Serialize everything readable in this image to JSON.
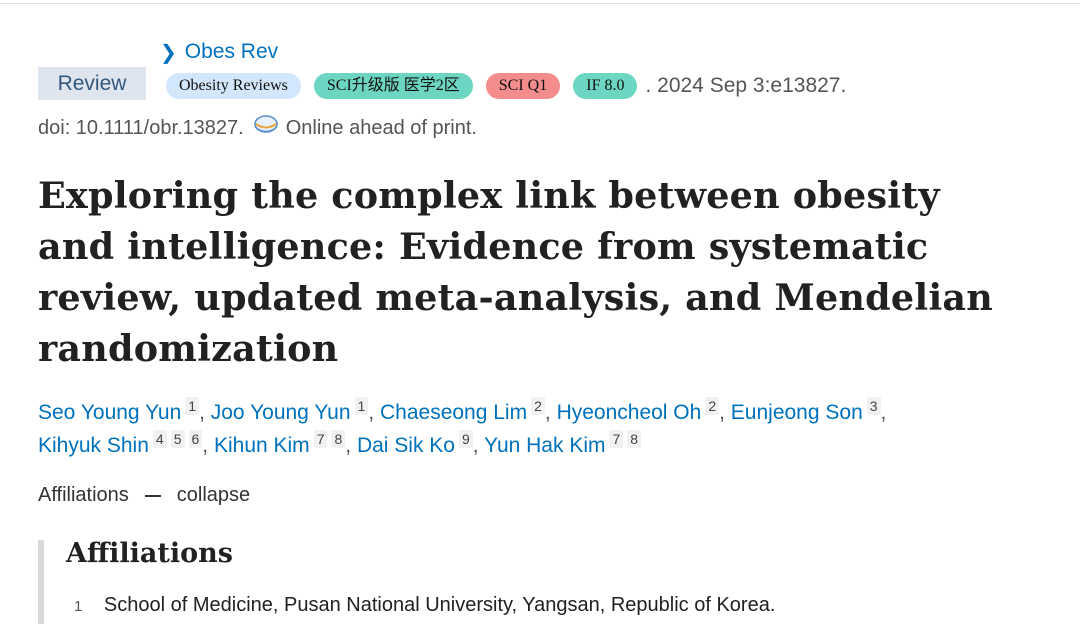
{
  "journal_link": "Obes Rev",
  "publication_type": "Review",
  "badges": {
    "journal": "Obesity Reviews",
    "sci_zone": "SCI升级版 医学2区",
    "sci_q": "SCI Q1",
    "impact_factor": "IF 8.0"
  },
  "citation_date": ". 2024 Sep 3:e13827.",
  "doi_text": "doi: 10.1111/obr.13827.",
  "doi_status": "Online ahead of print.",
  "title": "Exploring the complex link between obesity and intelligence: Evidence from systematic review, updated meta-analysis, and Mendelian randomization",
  "authors": [
    {
      "name": "Seo Young Yun",
      "affs": [
        "1"
      ]
    },
    {
      "name": "Joo Young Yun",
      "affs": [
        "1"
      ]
    },
    {
      "name": "Chaeseong Lim",
      "affs": [
        "2"
      ]
    },
    {
      "name": "Hyeoncheol Oh",
      "affs": [
        "2"
      ]
    },
    {
      "name": "Eunjeong Son",
      "affs": [
        "3"
      ]
    },
    {
      "name": "Kihyuk Shin",
      "affs": [
        "4",
        "5",
        "6"
      ]
    },
    {
      "name": "Kihun Kim",
      "affs": [
        "7",
        "8"
      ]
    },
    {
      "name": "Dai Sik Ko",
      "affs": [
        "9"
      ]
    },
    {
      "name": "Yun Hak Kim",
      "affs": [
        "7",
        "8"
      ]
    }
  ],
  "affiliations_toggle": {
    "label": "Affiliations",
    "action": "collapse"
  },
  "affiliations": {
    "heading": "Affiliations",
    "items": [
      {
        "num": "1",
        "text": "School of Medicine, Pusan National University, Yangsan, Republic of Korea."
      }
    ]
  },
  "colors": {
    "link": "#0071bc",
    "badge_green": "#6dd6c2",
    "badge_red": "#f38d8d",
    "badge_blue": "#d2e7fb"
  }
}
